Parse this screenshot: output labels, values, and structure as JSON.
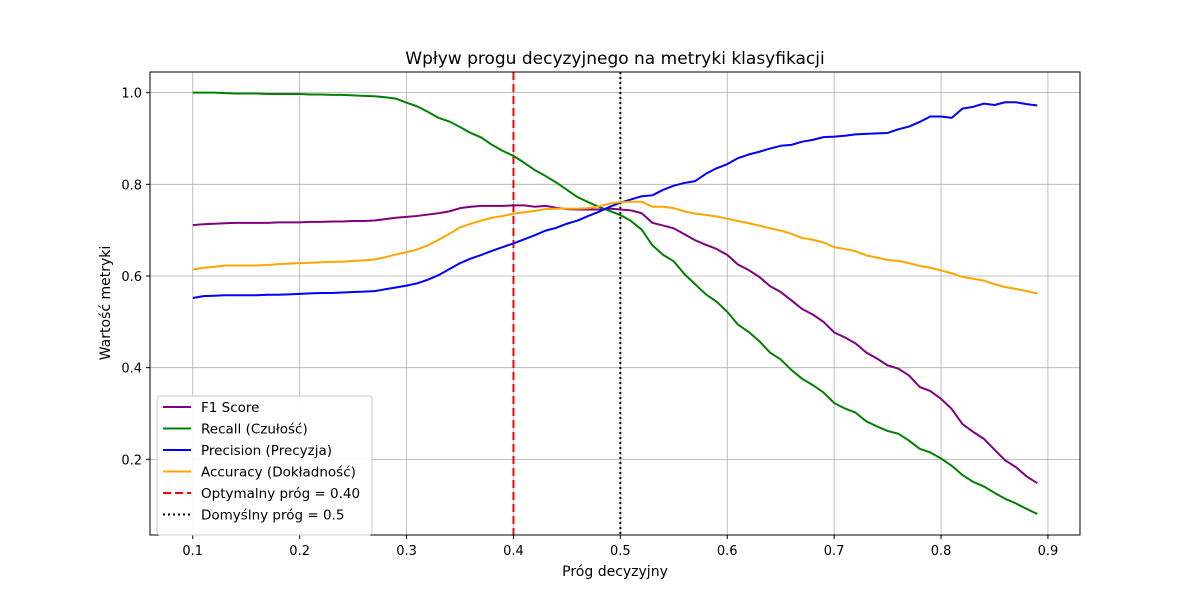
{
  "chart_data": {
    "type": "line",
    "title": "Wpływ progu decyzyjnego na metryki klasyfikacji",
    "xlabel": "Próg decyzyjny",
    "ylabel": "Wartość metryki",
    "xlim": [
      0.06,
      0.93
    ],
    "ylim": [
      0.035,
      1.045
    ],
    "xticks": [
      0.1,
      0.2,
      0.3,
      0.4,
      0.5,
      0.6,
      0.7,
      0.8,
      0.9
    ],
    "xtick_labels": [
      "0.1",
      "0.2",
      "0.3",
      "0.4",
      "0.5",
      "0.6",
      "0.7",
      "0.8",
      "0.9"
    ],
    "yticks": [
      0.2,
      0.4,
      0.6,
      0.8,
      1.0
    ],
    "ytick_labels": [
      "0.2",
      "0.4",
      "0.6",
      "0.8",
      "1.0"
    ],
    "grid": true,
    "legend_position": "lower-left",
    "x": [
      0.1,
      0.11,
      0.12,
      0.13,
      0.14,
      0.15,
      0.16,
      0.17,
      0.18,
      0.19,
      0.2,
      0.21,
      0.22,
      0.23,
      0.24,
      0.25,
      0.26,
      0.27,
      0.28,
      0.29,
      0.3,
      0.31,
      0.32,
      0.33,
      0.34,
      0.35,
      0.36,
      0.37,
      0.38,
      0.39,
      0.4,
      0.41,
      0.42,
      0.43,
      0.44,
      0.45,
      0.46,
      0.47,
      0.48,
      0.49,
      0.5,
      0.51,
      0.52,
      0.53,
      0.54,
      0.55,
      0.56,
      0.57,
      0.58,
      0.59,
      0.6,
      0.61,
      0.62,
      0.63,
      0.64,
      0.65,
      0.66,
      0.67,
      0.68,
      0.69,
      0.7,
      0.71,
      0.72,
      0.73,
      0.74,
      0.75,
      0.76,
      0.77,
      0.78,
      0.79,
      0.8,
      0.81,
      0.82,
      0.83,
      0.84,
      0.85,
      0.86,
      0.87,
      0.88,
      0.89
    ],
    "series": [
      {
        "name": "F1 Score",
        "color": "#800080",
        "style": "solid",
        "values": [
          0.711,
          0.713,
          0.714,
          0.715,
          0.716,
          0.716,
          0.716,
          0.716,
          0.717,
          0.717,
          0.717,
          0.718,
          0.718,
          0.719,
          0.719,
          0.72,
          0.72,
          0.721,
          0.724,
          0.727,
          0.729,
          0.731,
          0.734,
          0.737,
          0.741,
          0.748,
          0.751,
          0.753,
          0.753,
          0.753,
          0.754,
          0.754,
          0.751,
          0.753,
          0.749,
          0.746,
          0.745,
          0.745,
          0.745,
          0.747,
          0.745,
          0.743,
          0.737,
          0.716,
          0.71,
          0.704,
          0.691,
          0.678,
          0.668,
          0.659,
          0.646,
          0.625,
          0.613,
          0.598,
          0.578,
          0.565,
          0.547,
          0.528,
          0.516,
          0.5,
          0.477,
          0.466,
          0.453,
          0.433,
          0.42,
          0.405,
          0.398,
          0.383,
          0.358,
          0.349,
          0.332,
          0.31,
          0.277,
          0.26,
          0.245,
          0.221,
          0.198,
          0.183,
          0.163,
          0.148
        ]
      },
      {
        "name": "Recall (Czułość)",
        "color": "#008000",
        "style": "solid",
        "values": [
          1.0,
          1.0,
          1.0,
          0.999,
          0.998,
          0.998,
          0.998,
          0.997,
          0.997,
          0.997,
          0.997,
          0.996,
          0.996,
          0.995,
          0.995,
          0.994,
          0.993,
          0.992,
          0.99,
          0.987,
          0.978,
          0.97,
          0.958,
          0.945,
          0.937,
          0.925,
          0.912,
          0.902,
          0.886,
          0.873,
          0.862,
          0.847,
          0.831,
          0.818,
          0.804,
          0.788,
          0.772,
          0.761,
          0.751,
          0.742,
          0.733,
          0.72,
          0.701,
          0.667,
          0.646,
          0.632,
          0.604,
          0.582,
          0.56,
          0.544,
          0.522,
          0.494,
          0.478,
          0.458,
          0.433,
          0.418,
          0.395,
          0.376,
          0.362,
          0.346,
          0.323,
          0.311,
          0.302,
          0.283,
          0.272,
          0.262,
          0.256,
          0.241,
          0.223,
          0.215,
          0.202,
          0.186,
          0.166,
          0.151,
          0.141,
          0.127,
          0.114,
          0.104,
          0.092,
          0.081
        ]
      },
      {
        "name": "Precision (Precyzja)",
        "color": "#0000ff",
        "style": "solid",
        "values": [
          0.552,
          0.556,
          0.557,
          0.558,
          0.558,
          0.558,
          0.558,
          0.559,
          0.559,
          0.56,
          0.561,
          0.562,
          0.563,
          0.563,
          0.564,
          0.565,
          0.566,
          0.567,
          0.571,
          0.575,
          0.579,
          0.584,
          0.592,
          0.602,
          0.615,
          0.628,
          0.638,
          0.646,
          0.655,
          0.663,
          0.671,
          0.68,
          0.689,
          0.699,
          0.705,
          0.714,
          0.721,
          0.731,
          0.74,
          0.751,
          0.76,
          0.767,
          0.774,
          0.776,
          0.788,
          0.797,
          0.803,
          0.807,
          0.823,
          0.835,
          0.844,
          0.857,
          0.865,
          0.871,
          0.878,
          0.884,
          0.886,
          0.893,
          0.897,
          0.903,
          0.904,
          0.906,
          0.909,
          0.91,
          0.911,
          0.912,
          0.92,
          0.926,
          0.936,
          0.948,
          0.948,
          0.945,
          0.965,
          0.969,
          0.976,
          0.973,
          0.979,
          0.979,
          0.975,
          0.972
        ]
      },
      {
        "name": "Accuracy (Dokładność)",
        "color": "#ffa500",
        "style": "solid",
        "values": [
          0.614,
          0.618,
          0.62,
          0.623,
          0.623,
          0.623,
          0.623,
          0.624,
          0.626,
          0.627,
          0.628,
          0.629,
          0.63,
          0.631,
          0.631,
          0.633,
          0.634,
          0.636,
          0.641,
          0.647,
          0.652,
          0.658,
          0.667,
          0.679,
          0.692,
          0.706,
          0.714,
          0.721,
          0.727,
          0.731,
          0.736,
          0.739,
          0.742,
          0.746,
          0.747,
          0.747,
          0.747,
          0.748,
          0.752,
          0.758,
          0.761,
          0.762,
          0.762,
          0.751,
          0.751,
          0.748,
          0.741,
          0.736,
          0.733,
          0.73,
          0.725,
          0.72,
          0.715,
          0.71,
          0.704,
          0.699,
          0.692,
          0.683,
          0.679,
          0.673,
          0.663,
          0.659,
          0.654,
          0.645,
          0.64,
          0.635,
          0.633,
          0.628,
          0.622,
          0.618,
          0.612,
          0.606,
          0.598,
          0.594,
          0.59,
          0.582,
          0.576,
          0.572,
          0.567,
          0.562
        ]
      }
    ],
    "reference_lines": [
      {
        "name": "Optymalny próg = 0.40",
        "x": 0.4,
        "color": "#ff0000",
        "style": "dashed"
      },
      {
        "name": "Domyślny próg = 0.5",
        "x": 0.5,
        "color": "#000000",
        "style": "dotted"
      }
    ]
  }
}
